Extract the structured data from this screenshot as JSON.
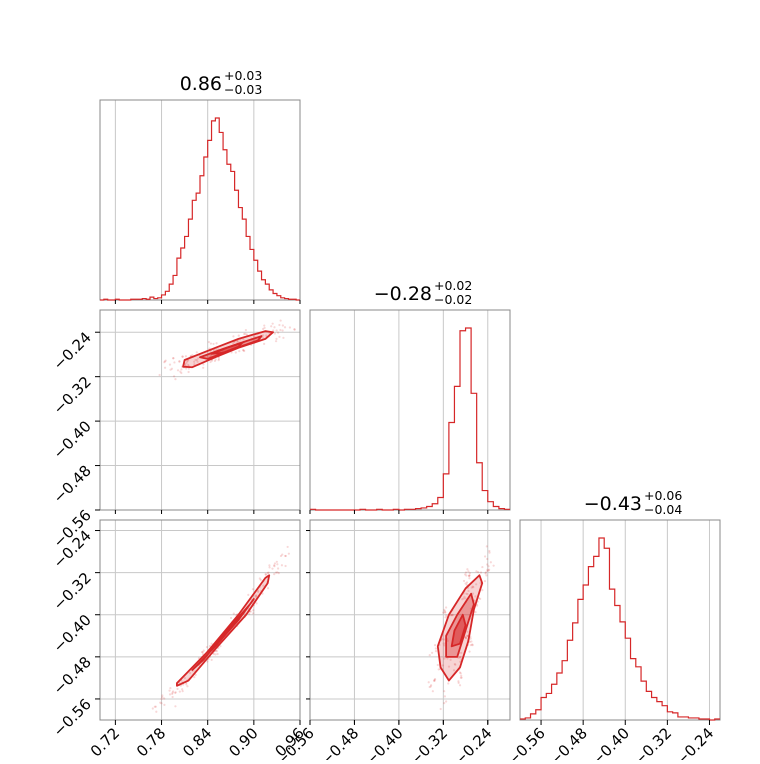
{
  "chart_data": {
    "type": "corner",
    "color": "#d62728",
    "parameters": [
      {
        "value": "0.86",
        "err_plus": "+0.03",
        "err_minus": "−0.03",
        "range": [
          0.7,
          0.96
        ]
      },
      {
        "value": "−0.28",
        "err_plus": "+0.02",
        "err_minus": "−0.02",
        "range": [
          -0.56,
          -0.2
        ]
      },
      {
        "value": "−0.43",
        "err_plus": "+0.06",
        "err_minus": "−0.04",
        "range": [
          -0.6,
          -0.22
        ]
      }
    ],
    "ticks": [
      {
        "values": [
          0.72,
          0.78,
          0.84,
          0.9,
          0.96
        ],
        "labels": [
          "0.72",
          "0.78",
          "0.84",
          "0.90",
          "0.96"
        ]
      },
      {
        "values": [
          -0.56,
          -0.48,
          -0.4,
          -0.32,
          -0.24
        ],
        "labels": [
          "−0.56",
          "−0.48",
          "−0.40",
          "−0.32",
          "−0.24"
        ]
      },
      {
        "values": [
          -0.56,
          -0.48,
          -0.4,
          -0.32,
          -0.24
        ],
        "labels": [
          "−0.56",
          "−0.48",
          "−0.40",
          "−0.32",
          "−0.24"
        ]
      }
    ],
    "histograms": [
      {
        "param": 0,
        "bin_width": 0.005,
        "edges": [
          0.7,
          0.705,
          0.71,
          0.715,
          0.72,
          0.725,
          0.73,
          0.735,
          0.74,
          0.745,
          0.75,
          0.755,
          0.76,
          0.765,
          0.77,
          0.775,
          0.78,
          0.785,
          0.79,
          0.795,
          0.8,
          0.805,
          0.81,
          0.815,
          0.82,
          0.825,
          0.83,
          0.835,
          0.84,
          0.845,
          0.85,
          0.855,
          0.86,
          0.865,
          0.87,
          0.875,
          0.88,
          0.885,
          0.89,
          0.895,
          0.9,
          0.905,
          0.91,
          0.915,
          0.92,
          0.925,
          0.93,
          0.935,
          0.94,
          0.945,
          0.95,
          0.955,
          0.96
        ],
        "counts": [
          0,
          1,
          0,
          0,
          1,
          0,
          0,
          0,
          1,
          1,
          1,
          2,
          1,
          4,
          2,
          3,
          7,
          12,
          22,
          34,
          58,
          72,
          88,
          112,
          138,
          148,
          172,
          198,
          221,
          248,
          252,
          232,
          208,
          188,
          178,
          152,
          128,
          112,
          88,
          70,
          55,
          40,
          28,
          22,
          14,
          9,
          6,
          3,
          2,
          1,
          1,
          0
        ]
      },
      {
        "param": 1,
        "bin_width": 0.01,
        "edges": [
          -0.56,
          -0.55,
          -0.54,
          -0.53,
          -0.52,
          -0.51,
          -0.5,
          -0.49,
          -0.48,
          -0.47,
          -0.46,
          -0.45,
          -0.44,
          -0.43,
          -0.42,
          -0.41,
          -0.4,
          -0.39,
          -0.38,
          -0.37,
          -0.36,
          -0.35,
          -0.34,
          -0.33,
          -0.32,
          -0.31,
          -0.3,
          -0.29,
          -0.28,
          -0.27,
          -0.26,
          -0.25,
          -0.24,
          -0.23,
          -0.22,
          -0.21,
          -0.2
        ],
        "counts": [
          1,
          0,
          0,
          0,
          0,
          0,
          0,
          0,
          0,
          1,
          0,
          0,
          1,
          0,
          0,
          1,
          0,
          1,
          1,
          2,
          3,
          5,
          9,
          18,
          52,
          126,
          178,
          258,
          262,
          168,
          68,
          28,
          12,
          5,
          2,
          1
        ]
      },
      {
        "param": 2,
        "bin_width": 0.01,
        "edges": [
          -0.6,
          -0.59,
          -0.58,
          -0.57,
          -0.56,
          -0.55,
          -0.54,
          -0.53,
          -0.52,
          -0.51,
          -0.5,
          -0.49,
          -0.48,
          -0.47,
          -0.46,
          -0.45,
          -0.44,
          -0.43,
          -0.42,
          -0.41,
          -0.4,
          -0.39,
          -0.38,
          -0.37,
          -0.36,
          -0.35,
          -0.34,
          -0.33,
          -0.32,
          -0.31,
          -0.3,
          -0.29,
          -0.28,
          -0.27,
          -0.26,
          -0.25,
          -0.24,
          -0.23,
          -0.22
        ],
        "counts": [
          1,
          2,
          6,
          10,
          22,
          26,
          35,
          46,
          58,
          78,
          95,
          118,
          132,
          150,
          160,
          178,
          168,
          128,
          112,
          96,
          80,
          60,
          52,
          38,
          28,
          22,
          18,
          14,
          8,
          7,
          3,
          3,
          2,
          2,
          1,
          1,
          0,
          1
        ]
      }
    ],
    "scatter": [
      {
        "x": 0,
        "y": 1,
        "contours": [
          {
            "pts": [
              [
                0.81,
                -0.29
              ],
              [
                0.85,
                -0.268
              ],
              [
                0.88,
                -0.252
              ],
              [
                0.915,
                -0.238
              ],
              [
                0.925,
                -0.24
              ],
              [
                0.915,
                -0.252
              ],
              [
                0.88,
                -0.268
              ],
              [
                0.85,
                -0.285
              ],
              [
                0.82,
                -0.303
              ],
              [
                0.808,
                -0.302
              ]
            ],
            "fill": 0.25
          },
          {
            "pts": [
              [
                0.83,
                -0.285
              ],
              [
                0.86,
                -0.27
              ],
              [
                0.89,
                -0.256
              ],
              [
                0.91,
                -0.247
              ],
              [
                0.905,
                -0.255
              ],
              [
                0.87,
                -0.272
              ],
              [
                0.84,
                -0.288
              ]
            ],
            "fill": 0.45
          },
          {
            "pts": [
              [
                0.845,
                -0.279
              ],
              [
                0.865,
                -0.268
              ],
              [
                0.885,
                -0.259
              ],
              [
                0.88,
                -0.266
              ],
              [
                0.86,
                -0.277
              ]
            ],
            "fill": 0.65
          }
        ]
      },
      {
        "x": 0,
        "y": 2,
        "contours": [
          {
            "pts": [
              [
                0.8,
                -0.53
              ],
              [
                0.84,
                -0.47
              ],
              [
                0.88,
                -0.4
              ],
              [
                0.915,
                -0.33
              ],
              [
                0.92,
                -0.325
              ],
              [
                0.918,
                -0.34
              ],
              [
                0.89,
                -0.4
              ],
              [
                0.85,
                -0.465
              ],
              [
                0.815,
                -0.525
              ],
              [
                0.8,
                -0.535
              ]
            ],
            "fill": 0.25
          },
          {
            "pts": [
              [
                0.82,
                -0.505
              ],
              [
                0.85,
                -0.46
              ],
              [
                0.88,
                -0.41
              ],
              [
                0.9,
                -0.37
              ],
              [
                0.895,
                -0.38
              ],
              [
                0.865,
                -0.43
              ],
              [
                0.835,
                -0.485
              ]
            ],
            "fill": 0.45
          },
          {
            "pts": [
              [
                0.84,
                -0.47
              ],
              [
                0.86,
                -0.44
              ],
              [
                0.875,
                -0.41
              ],
              [
                0.87,
                -0.425
              ],
              [
                0.85,
                -0.46
              ]
            ],
            "fill": 0.65
          }
        ]
      },
      {
        "x": 1,
        "y": 2,
        "contours": [
          {
            "pts": [
              [
                -0.325,
                -0.5
              ],
              [
                -0.33,
                -0.46
              ],
              [
                -0.31,
                -0.4
              ],
              [
                -0.28,
                -0.35
              ],
              [
                -0.255,
                -0.325
              ],
              [
                -0.25,
                -0.34
              ],
              [
                -0.265,
                -0.39
              ],
              [
                -0.275,
                -0.45
              ],
              [
                -0.29,
                -0.5
              ],
              [
                -0.31,
                -0.525
              ]
            ],
            "fill": 0.25
          },
          {
            "pts": [
              [
                -0.315,
                -0.48
              ],
              [
                -0.315,
                -0.44
              ],
              [
                -0.295,
                -0.4
              ],
              [
                -0.27,
                -0.36
              ],
              [
                -0.265,
                -0.38
              ],
              [
                -0.28,
                -0.43
              ],
              [
                -0.295,
                -0.48
              ]
            ],
            "fill": 0.45
          },
          {
            "pts": [
              [
                -0.305,
                -0.46
              ],
              [
                -0.3,
                -0.43
              ],
              [
                -0.285,
                -0.4
              ],
              [
                -0.28,
                -0.42
              ],
              [
                -0.29,
                -0.455
              ]
            ],
            "fill": 0.65
          }
        ]
      }
    ]
  }
}
